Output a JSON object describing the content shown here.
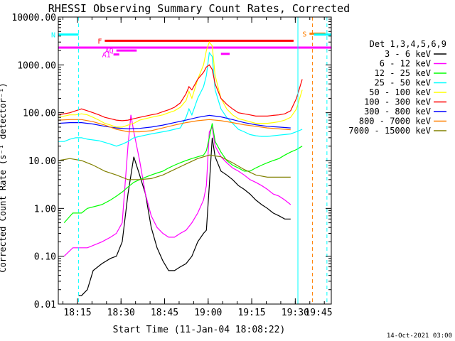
{
  "chart_data": {
    "type": "line",
    "title": "RHESSI Observing Summary Count Rates, Corrected",
    "xlabel": "Start Time (11-Jan-04 18:08:22)",
    "ylabel": "Corrected Count Rate (s⁻¹ detector⁻¹)",
    "footer": "14-Oct-2021 03:00",
    "x_unit": "minutes after 18:08:22",
    "xlim": [
      0,
      94
    ],
    "ylim": [
      0.01,
      10000
    ],
    "yscale": "log",
    "grid": false,
    "legend_placement": "right",
    "legend_title": "Det 1,3,4,5,6,9",
    "x_ticks": [
      {
        "label": "18:15",
        "x": 6.6
      },
      {
        "label": "18:30",
        "x": 21.6
      },
      {
        "label": "18:45",
        "x": 36.6
      },
      {
        "label": "19:00",
        "x": 51.6
      },
      {
        "label": "19:15",
        "x": 66.6
      },
      {
        "label": "19:30",
        "x": 81.6
      },
      {
        "label": "19:45",
        "x": 96.6
      }
    ],
    "y_ticks": [
      {
        "label": "0.01",
        "v": 0.01
      },
      {
        "label": "0.10",
        "v": 0.1
      },
      {
        "label": "1.00",
        "v": 1
      },
      {
        "label": "10.00",
        "v": 10
      },
      {
        "label": "100.00",
        "v": 100
      },
      {
        "label": "1000.00",
        "v": 1000
      },
      {
        "label": "10000.00",
        "v": 10000
      }
    ],
    "series": [
      {
        "name": "3 - 6 keV",
        "color": "#000000",
        "x": [
          7,
          8,
          10,
          12,
          15,
          18,
          20,
          22,
          24,
          26,
          28,
          30,
          32,
          34,
          36,
          38,
          40,
          42,
          44,
          46,
          48,
          50,
          51,
          52,
          53,
          54,
          56,
          58,
          60,
          62,
          64,
          66,
          68,
          70,
          72,
          74,
          76,
          78,
          80
        ],
        "y": [
          0.015,
          0.015,
          0.02,
          0.05,
          0.07,
          0.09,
          0.1,
          0.2,
          2,
          12,
          5,
          2,
          0.4,
          0.15,
          0.08,
          0.05,
          0.05,
          0.06,
          0.07,
          0.1,
          0.2,
          0.3,
          0.35,
          3,
          30,
          12,
          6,
          5,
          4,
          3,
          2.5,
          2,
          1.5,
          1.2,
          1,
          0.8,
          0.7,
          0.6,
          0.6
        ]
      },
      {
        "name": "6 - 12 keV",
        "color": "#ff00ff",
        "x": [
          2,
          5,
          8,
          10,
          15,
          18,
          20,
          22,
          24,
          25,
          26,
          28,
          30,
          32,
          34,
          36,
          38,
          40,
          42,
          44,
          46,
          48,
          50,
          51,
          52,
          53,
          54,
          56,
          58,
          60,
          62,
          64,
          66,
          68,
          70,
          72,
          74,
          76,
          78,
          80
        ],
        "y": [
          0.1,
          0.15,
          0.15,
          0.15,
          0.2,
          0.25,
          0.3,
          0.5,
          20,
          90,
          40,
          10,
          2,
          0.7,
          0.4,
          0.3,
          0.25,
          0.25,
          0.3,
          0.35,
          0.5,
          0.8,
          1.5,
          3,
          40,
          50,
          20,
          12,
          9,
          7,
          6,
          5,
          4,
          3.5,
          3,
          2.5,
          2,
          1.8,
          1.5,
          1.2
        ]
      },
      {
        "name": "12 - 25 keV",
        "color": "#00ff00",
        "x": [
          2,
          5,
          8,
          10,
          15,
          18,
          20,
          22,
          24,
          26,
          28,
          30,
          32,
          34,
          36,
          38,
          40,
          42,
          44,
          46,
          48,
          50,
          51,
          52,
          53,
          54,
          56,
          58,
          60,
          62,
          64,
          66,
          68,
          70,
          72,
          74,
          76,
          78,
          80,
          82,
          84
        ],
        "y": [
          0.5,
          0.8,
          0.8,
          1.0,
          1.2,
          1.5,
          1.8,
          2.2,
          2.8,
          3.5,
          4,
          4.5,
          5,
          5.5,
          6,
          7,
          8,
          9,
          10,
          11,
          12,
          13,
          16,
          30,
          60,
          25,
          15,
          10,
          8,
          7,
          6,
          6,
          7,
          8,
          9,
          10,
          11,
          13,
          15,
          17,
          20
        ]
      },
      {
        "name": "25 - 50 keV",
        "color": "#00ffff",
        "x": [
          0,
          2,
          4,
          6,
          8,
          10,
          12,
          14,
          16,
          18,
          20,
          22,
          24,
          26,
          28,
          30,
          32,
          34,
          36,
          38,
          40,
          42,
          44,
          45,
          46,
          48,
          50,
          51,
          52,
          53,
          54,
          56,
          58,
          60,
          62,
          64,
          66,
          68,
          70,
          72,
          74,
          76,
          78,
          80,
          82,
          84
        ],
        "y": [
          25,
          25,
          28,
          30,
          30,
          28,
          27,
          26,
          24,
          22,
          20,
          22,
          25,
          30,
          32,
          34,
          36,
          38,
          40,
          42,
          45,
          48,
          80,
          120,
          90,
          200,
          350,
          600,
          1800,
          1500,
          300,
          120,
          80,
          60,
          45,
          40,
          35,
          33,
          32,
          32,
          33,
          34,
          35,
          36,
          40,
          45
        ]
      },
      {
        "name": "50 - 100 keV",
        "color": "#ffff00",
        "x": [
          0,
          2,
          4,
          6,
          8,
          10,
          12,
          14,
          16,
          18,
          20,
          22,
          24,
          26,
          28,
          30,
          32,
          34,
          36,
          38,
          40,
          42,
          44,
          45,
          46,
          48,
          50,
          51,
          52,
          53,
          54,
          56,
          58,
          60,
          62,
          64,
          66,
          68,
          70,
          72,
          74,
          76,
          78,
          80,
          82,
          84
        ],
        "y": [
          80,
          85,
          90,
          90,
          95,
          90,
          80,
          70,
          60,
          55,
          50,
          50,
          55,
          60,
          70,
          75,
          80,
          85,
          90,
          100,
          110,
          130,
          180,
          280,
          200,
          500,
          1000,
          2000,
          3000,
          2500,
          600,
          200,
          120,
          90,
          75,
          70,
          65,
          60,
          60,
          60,
          62,
          65,
          70,
          80,
          120,
          300
        ]
      },
      {
        "name": "100 - 300 keV",
        "color": "#ff0000",
        "x": [
          0,
          2,
          4,
          6,
          8,
          10,
          12,
          14,
          16,
          18,
          20,
          22,
          24,
          26,
          28,
          30,
          32,
          34,
          36,
          38,
          40,
          42,
          44,
          45,
          46,
          48,
          50,
          51,
          52,
          53,
          54,
          56,
          58,
          60,
          62,
          64,
          66,
          68,
          70,
          72,
          74,
          76,
          78,
          80,
          82,
          84
        ],
        "y": [
          90,
          95,
          100,
          110,
          120,
          110,
          100,
          90,
          80,
          75,
          70,
          68,
          70,
          75,
          80,
          85,
          90,
          95,
          105,
          115,
          130,
          160,
          250,
          350,
          300,
          500,
          700,
          900,
          1000,
          800,
          400,
          200,
          150,
          120,
          100,
          95,
          90,
          85,
          85,
          85,
          88,
          90,
          95,
          110,
          200,
          500
        ]
      },
      {
        "name": "300 - 800 keV",
        "color": "#0000ff",
        "x": [
          0,
          4,
          8,
          12,
          16,
          20,
          24,
          28,
          32,
          36,
          40,
          44,
          48,
          52,
          56,
          60,
          64,
          68,
          72,
          76,
          80
        ],
        "y": [
          60,
          62,
          62,
          58,
          52,
          48,
          46,
          47,
          50,
          55,
          62,
          70,
          80,
          88,
          82,
          72,
          62,
          56,
          52,
          50,
          48
        ]
      },
      {
        "name": "800 - 7000 keV",
        "color": "#ff8000",
        "x": [
          0,
          4,
          8,
          12,
          16,
          20,
          24,
          28,
          32,
          36,
          40,
          44,
          48,
          52,
          56,
          60,
          64,
          68,
          72,
          76,
          80
        ],
        "y": [
          70,
          72,
          72,
          65,
          55,
          45,
          40,
          40,
          42,
          48,
          55,
          62,
          68,
          72,
          68,
          62,
          56,
          52,
          48,
          46,
          44
        ]
      },
      {
        "name": "7000 - 15000 keV",
        "color": "#808000",
        "x": [
          0,
          4,
          8,
          12,
          16,
          20,
          24,
          28,
          32,
          36,
          40,
          44,
          48,
          52,
          56,
          60,
          64,
          68,
          72,
          76,
          80
        ],
        "y": [
          10,
          11,
          10,
          8,
          6,
          5,
          4,
          4,
          4.2,
          5,
          6.5,
          8.5,
          11,
          13,
          12,
          9,
          6.5,
          5,
          4.5,
          4.5,
          4.5
        ]
      }
    ],
    "flag_bars": [
      {
        "label": "F",
        "color": "#ff0000",
        "x0": 16,
        "x1": 81,
        "y": 3200
      },
      {
        "label": "S",
        "color": "#ff8000",
        "x0": 86.5,
        "x1": 92,
        "y": 4500
      },
      {
        "label": "",
        "color": "#ff00ff",
        "x0": 0,
        "x1": 94,
        "y": 2300
      },
      {
        "label": "AQ",
        "color": "#ff00ff",
        "x0": 20,
        "x1": 27,
        "y": 2000
      },
      {
        "label": "A1",
        "color": "#ff00ff",
        "x0": 19,
        "x1": 21,
        "y": 1650
      },
      {
        "label": "",
        "color": "#ff00ff",
        "x0": 56,
        "x1": 59,
        "y": 1700
      },
      {
        "label": "N",
        "color": "#00ffff",
        "x0": 0,
        "x1": 7,
        "y": 4300
      },
      {
        "label": "",
        "color": "#00ffff",
        "x0": 88,
        "x1": 94,
        "y": 4300
      }
    ],
    "vertical_lines": [
      {
        "x": 7.0,
        "color": "#00ffff",
        "dashed": true
      },
      {
        "x": 82.5,
        "color": "#00ffff",
        "dashed": false
      },
      {
        "x": 87.5,
        "color": "#ff8000",
        "dashed": true
      },
      {
        "x": 92.5,
        "color": "#00ffff",
        "dashed": true
      }
    ]
  }
}
